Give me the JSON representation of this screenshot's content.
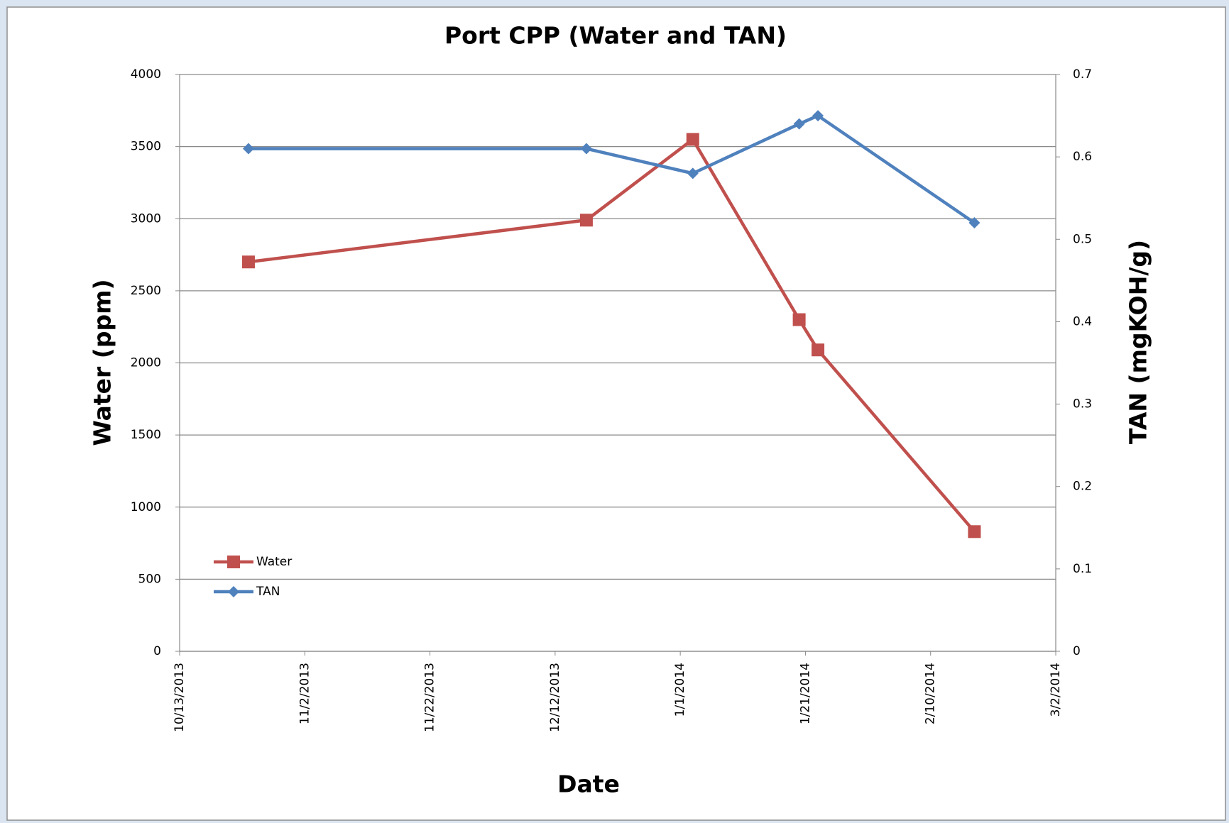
{
  "chart_data": {
    "type": "line",
    "title": "Port CPP (Water and TAN)",
    "xlabel": "Date",
    "ylabel": "Water (ppm)",
    "y2label": "TAN (mgKOH/g)",
    "x": [
      "10/24/2013",
      "12/17/2013",
      "1/3/2014",
      "1/20/2014",
      "1/23/2014",
      "2/17/2014"
    ],
    "series": [
      {
        "name": "Water",
        "color": "#c0504d",
        "marker": "square",
        "values": [
          2700,
          2990,
          3550,
          2300,
          2090,
          830
        ]
      },
      {
        "name": "TAN",
        "color": "#4f81bd",
        "marker": "diamond",
        "axis": "y2",
        "values": [
          0.61,
          0.61,
          0.58,
          0.64,
          0.65,
          0.52
        ]
      }
    ],
    "xlim": [
      "10/13/2013",
      "3/2/2014"
    ],
    "xticks": [
      "10/13/2013",
      "11/2/2013",
      "11/22/2013",
      "12/12/2013",
      "1/1/2014",
      "1/21/2014",
      "2/10/2014",
      "3/2/2014"
    ],
    "ylim": [
      0,
      4000
    ],
    "yticks": [
      0,
      500,
      1000,
      1500,
      2000,
      2500,
      3000,
      3500,
      4000
    ],
    "y2lim": [
      0,
      0.7
    ],
    "y2ticks": [
      0,
      0.1,
      0.2,
      0.3,
      0.4,
      0.5,
      0.6,
      0.7
    ],
    "grid": true,
    "legend": "lower left"
  }
}
